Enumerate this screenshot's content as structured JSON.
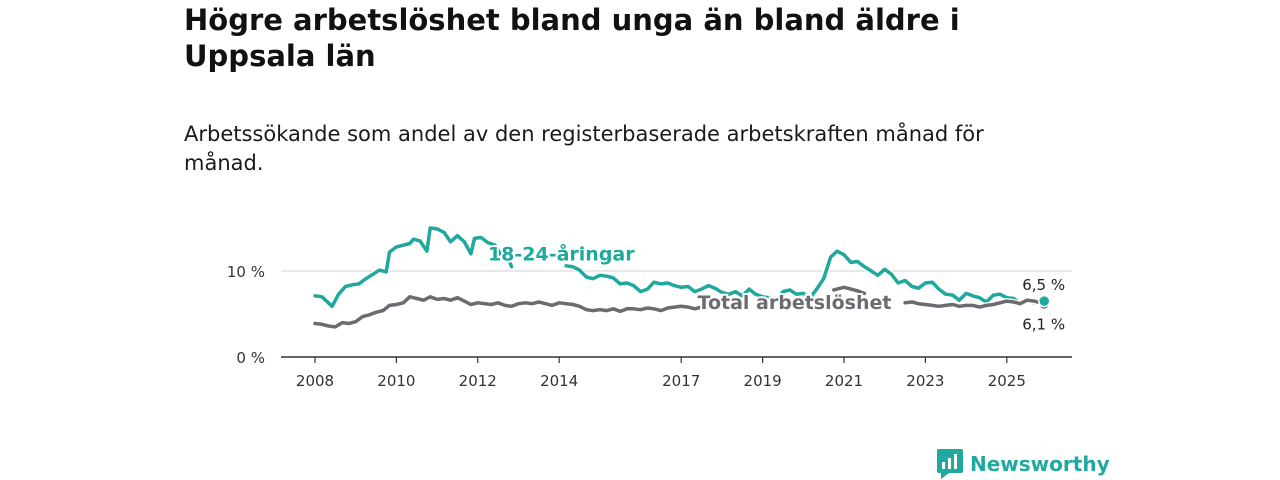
{
  "chart_data": {
    "type": "line",
    "title": "Högre arbetslöshet bland unga än bland äldre i Uppsala län",
    "subtitle": "Arbetssökande som andel av den registerbaserade arbetskraften månad för månad.",
    "xlabel": "",
    "ylabel": "",
    "xlim": [
      2008.0,
      2026.75
    ],
    "ylim": [
      0,
      15
    ],
    "x_ticks": [
      2008,
      2010,
      2012,
      2014,
      2017,
      2019,
      2021,
      2023,
      2025
    ],
    "y_ticks": [
      {
        "value": 0,
        "label": "0 %"
      },
      {
        "value": 10,
        "label": "10 %"
      }
    ],
    "grid": "horizontal",
    "series": [
      {
        "name": "18-24-åringar",
        "color": "#1fa89d",
        "end_label": "6,5 %",
        "points": [
          [
            2008.0,
            7.1
          ],
          [
            2008.17,
            7.0
          ],
          [
            2008.33,
            6.3
          ],
          [
            2008.42,
            5.9
          ],
          [
            2008.58,
            7.3
          ],
          [
            2008.75,
            8.2
          ],
          [
            2008.92,
            8.4
          ],
          [
            2009.08,
            8.5
          ],
          [
            2009.25,
            9.1
          ],
          [
            2009.42,
            9.6
          ],
          [
            2009.58,
            10.1
          ],
          [
            2009.75,
            9.9
          ],
          [
            2009.83,
            12.2
          ],
          [
            2010.0,
            12.8
          ],
          [
            2010.17,
            13.0
          ],
          [
            2010.33,
            13.2
          ],
          [
            2010.42,
            13.7
          ],
          [
            2010.58,
            13.5
          ],
          [
            2010.75,
            12.3
          ],
          [
            2010.83,
            15.0
          ],
          [
            2011.0,
            14.9
          ],
          [
            2011.17,
            14.5
          ],
          [
            2011.33,
            13.4
          ],
          [
            2011.5,
            14.1
          ],
          [
            2011.67,
            13.4
          ],
          [
            2011.83,
            12.0
          ],
          [
            2011.92,
            13.8
          ],
          [
            2012.08,
            13.9
          ],
          [
            2012.25,
            13.3
          ],
          [
            2012.42,
            13.0
          ],
          [
            2012.58,
            11.8
          ],
          [
            2012.75,
            11.5
          ],
          [
            2012.83,
            10.5
          ]
        ]
      },
      {
        "name": "18-24-åringar",
        "color": "#1fa89d",
        "points": [
          [
            2014.17,
            10.6
          ],
          [
            2014.33,
            10.5
          ],
          [
            2014.5,
            10.1
          ],
          [
            2014.67,
            9.3
          ],
          [
            2014.83,
            9.1
          ],
          [
            2015.0,
            9.5
          ],
          [
            2015.17,
            9.4
          ],
          [
            2015.33,
            9.2
          ],
          [
            2015.5,
            8.5
          ],
          [
            2015.67,
            8.6
          ],
          [
            2015.83,
            8.3
          ],
          [
            2016.0,
            7.6
          ],
          [
            2016.17,
            7.9
          ],
          [
            2016.33,
            8.7
          ],
          [
            2016.5,
            8.5
          ],
          [
            2016.67,
            8.6
          ],
          [
            2016.83,
            8.3
          ],
          [
            2017.0,
            8.1
          ],
          [
            2017.17,
            8.2
          ],
          [
            2017.33,
            7.6
          ],
          [
            2017.5,
            7.9
          ],
          [
            2017.67,
            8.3
          ],
          [
            2017.83,
            8.0
          ],
          [
            2018.0,
            7.5
          ],
          [
            2018.17,
            7.3
          ],
          [
            2018.33,
            7.6
          ],
          [
            2018.5,
            7.1
          ],
          [
            2018.67,
            7.9
          ],
          [
            2018.83,
            7.3
          ],
          [
            2019.0,
            7.0
          ],
          [
            2019.17,
            6.9
          ],
          [
            2019.33,
            6.5
          ],
          [
            2019.5,
            7.6
          ],
          [
            2019.67,
            7.8
          ],
          [
            2019.83,
            7.3
          ],
          [
            2020.0,
            7.4
          ],
          [
            2020.17,
            6.9
          ],
          [
            2020.33,
            7.9
          ],
          [
            2020.5,
            9.1
          ],
          [
            2020.67,
            11.6
          ],
          [
            2020.83,
            12.3
          ],
          [
            2021.0,
            11.9
          ],
          [
            2021.17,
            11.0
          ],
          [
            2021.33,
            11.1
          ],
          [
            2021.5,
            10.5
          ],
          [
            2021.67,
            10.0
          ],
          [
            2021.83,
            9.5
          ],
          [
            2022.0,
            10.2
          ],
          [
            2022.17,
            9.6
          ],
          [
            2022.33,
            8.6
          ],
          [
            2022.5,
            8.9
          ],
          [
            2022.67,
            8.2
          ],
          [
            2022.83,
            8.0
          ],
          [
            2023.0,
            8.6
          ],
          [
            2023.17,
            8.7
          ],
          [
            2023.33,
            7.9
          ],
          [
            2023.5,
            7.3
          ],
          [
            2023.67,
            7.2
          ],
          [
            2023.83,
            6.6
          ],
          [
            2024.0,
            7.4
          ],
          [
            2024.17,
            7.1
          ],
          [
            2024.33,
            6.9
          ],
          [
            2024.5,
            6.4
          ],
          [
            2024.67,
            7.2
          ],
          [
            2024.83,
            7.3
          ],
          [
            2025.0,
            6.9
          ],
          [
            2025.17,
            6.8
          ],
          [
            2025.33,
            6.2
          ],
          [
            2025.5,
            6.6
          ],
          [
            2025.67,
            6.3
          ],
          [
            2025.83,
            6.6
          ],
          [
            2025.92,
            6.5
          ]
        ]
      },
      {
        "name": "Total arbetslöshet",
        "color": "#6b6b70",
        "end_label": "6,1 %",
        "points": [
          [
            2008.0,
            3.9
          ],
          [
            2008.17,
            3.8
          ],
          [
            2008.33,
            3.6
          ],
          [
            2008.5,
            3.5
          ],
          [
            2008.67,
            4.0
          ],
          [
            2008.83,
            3.9
          ],
          [
            2009.0,
            4.1
          ],
          [
            2009.17,
            4.7
          ],
          [
            2009.33,
            4.9
          ],
          [
            2009.5,
            5.2
          ],
          [
            2009.67,
            5.4
          ],
          [
            2009.83,
            6.0
          ],
          [
            2010.0,
            6.1
          ],
          [
            2010.17,
            6.3
          ],
          [
            2010.33,
            7.0
          ],
          [
            2010.5,
            6.8
          ],
          [
            2010.67,
            6.6
          ],
          [
            2010.83,
            7.0
          ],
          [
            2011.0,
            6.7
          ],
          [
            2011.17,
            6.8
          ],
          [
            2011.33,
            6.6
          ],
          [
            2011.5,
            6.9
          ],
          [
            2011.67,
            6.5
          ],
          [
            2011.83,
            6.1
          ],
          [
            2012.0,
            6.3
          ],
          [
            2012.17,
            6.2
          ],
          [
            2012.33,
            6.1
          ],
          [
            2012.5,
            6.3
          ],
          [
            2012.67,
            6.0
          ],
          [
            2012.83,
            5.9
          ],
          [
            2013.0,
            6.2
          ],
          [
            2013.17,
            6.3
          ],
          [
            2013.33,
            6.2
          ],
          [
            2013.5,
            6.4
          ],
          [
            2013.67,
            6.2
          ],
          [
            2013.83,
            6.0
          ],
          [
            2014.0,
            6.3
          ],
          [
            2014.17,
            6.2
          ],
          [
            2014.33,
            6.1
          ],
          [
            2014.5,
            5.9
          ],
          [
            2014.67,
            5.5
          ],
          [
            2014.83,
            5.4
          ],
          [
            2015.0,
            5.5
          ],
          [
            2015.17,
            5.4
          ],
          [
            2015.33,
            5.6
          ],
          [
            2015.5,
            5.3
          ],
          [
            2015.67,
            5.6
          ],
          [
            2015.83,
            5.6
          ],
          [
            2016.0,
            5.5
          ],
          [
            2016.17,
            5.7
          ],
          [
            2016.33,
            5.6
          ],
          [
            2016.5,
            5.4
          ],
          [
            2016.67,
            5.7
          ],
          [
            2016.83,
            5.8
          ],
          [
            2017.0,
            5.9
          ],
          [
            2017.17,
            5.8
          ],
          [
            2017.33,
            5.6
          ],
          [
            2017.5,
            5.8
          ]
        ]
      },
      {
        "name": "Total arbetslöshet",
        "color": "#6b6b70",
        "points": [
          [
            2020.75,
            7.8
          ],
          [
            2021.0,
            8.1
          ],
          [
            2021.17,
            7.9
          ],
          [
            2021.33,
            7.7
          ],
          [
            2021.5,
            7.4
          ]
        ]
      },
      {
        "name": "Total arbetslöshet",
        "color": "#6b6b70",
        "points": [
          [
            2022.5,
            6.3
          ],
          [
            2022.67,
            6.4
          ],
          [
            2022.83,
            6.2
          ],
          [
            2023.0,
            6.1
          ],
          [
            2023.17,
            6.0
          ],
          [
            2023.33,
            5.9
          ],
          [
            2023.5,
            6.0
          ],
          [
            2023.67,
            6.1
          ],
          [
            2023.83,
            5.9
          ],
          [
            2024.0,
            6.0
          ],
          [
            2024.17,
            6.0
          ],
          [
            2024.33,
            5.8
          ],
          [
            2024.5,
            6.0
          ],
          [
            2024.67,
            6.1
          ],
          [
            2024.83,
            6.3
          ],
          [
            2025.0,
            6.5
          ],
          [
            2025.17,
            6.4
          ],
          [
            2025.33,
            6.2
          ],
          [
            2025.5,
            6.6
          ],
          [
            2025.67,
            6.5
          ],
          [
            2025.83,
            6.3
          ],
          [
            2025.92,
            6.1
          ]
        ]
      }
    ],
    "annotations": [
      "18-24-åringar",
      "Total arbetslöshet"
    ]
  },
  "branding": {
    "logo_text": "Newsworthy",
    "logo_icon": "bar-chart-logo-icon",
    "color": "#20a9a1"
  }
}
